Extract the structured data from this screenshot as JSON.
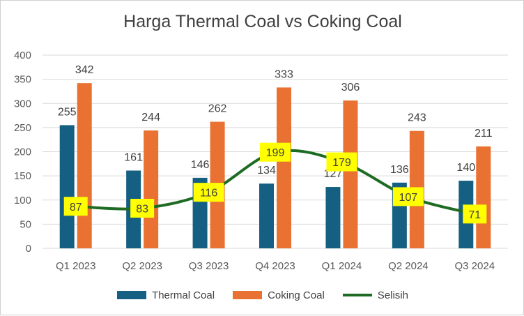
{
  "chart_data": {
    "type": "bar",
    "title": "Harga Thermal Coal vs Coking Coal",
    "categories": [
      "Q1 2023",
      "Q2 2023",
      "Q3 2023",
      "Q4 2023",
      "Q1 2024",
      "Q2 2024",
      "Q3 2024"
    ],
    "series": [
      {
        "name": "Thermal Coal",
        "type": "bar",
        "color": "#156082",
        "values": [
          255,
          161,
          146,
          134,
          127,
          136,
          140
        ]
      },
      {
        "name": "Coking Coal",
        "type": "bar",
        "color": "#E97132",
        "values": [
          342,
          244,
          262,
          333,
          306,
          243,
          211
        ]
      },
      {
        "name": "Selisih",
        "type": "line",
        "color": "#1E6B24",
        "values": [
          87,
          83,
          116,
          199,
          179,
          107,
          71
        ]
      }
    ],
    "ylim": [
      0,
      400
    ],
    "yticks": [
      0,
      50,
      100,
      150,
      200,
      250,
      300,
      350,
      400
    ],
    "grid": true,
    "legend": "bottom",
    "label_highlight_color": "#FFFF00"
  }
}
